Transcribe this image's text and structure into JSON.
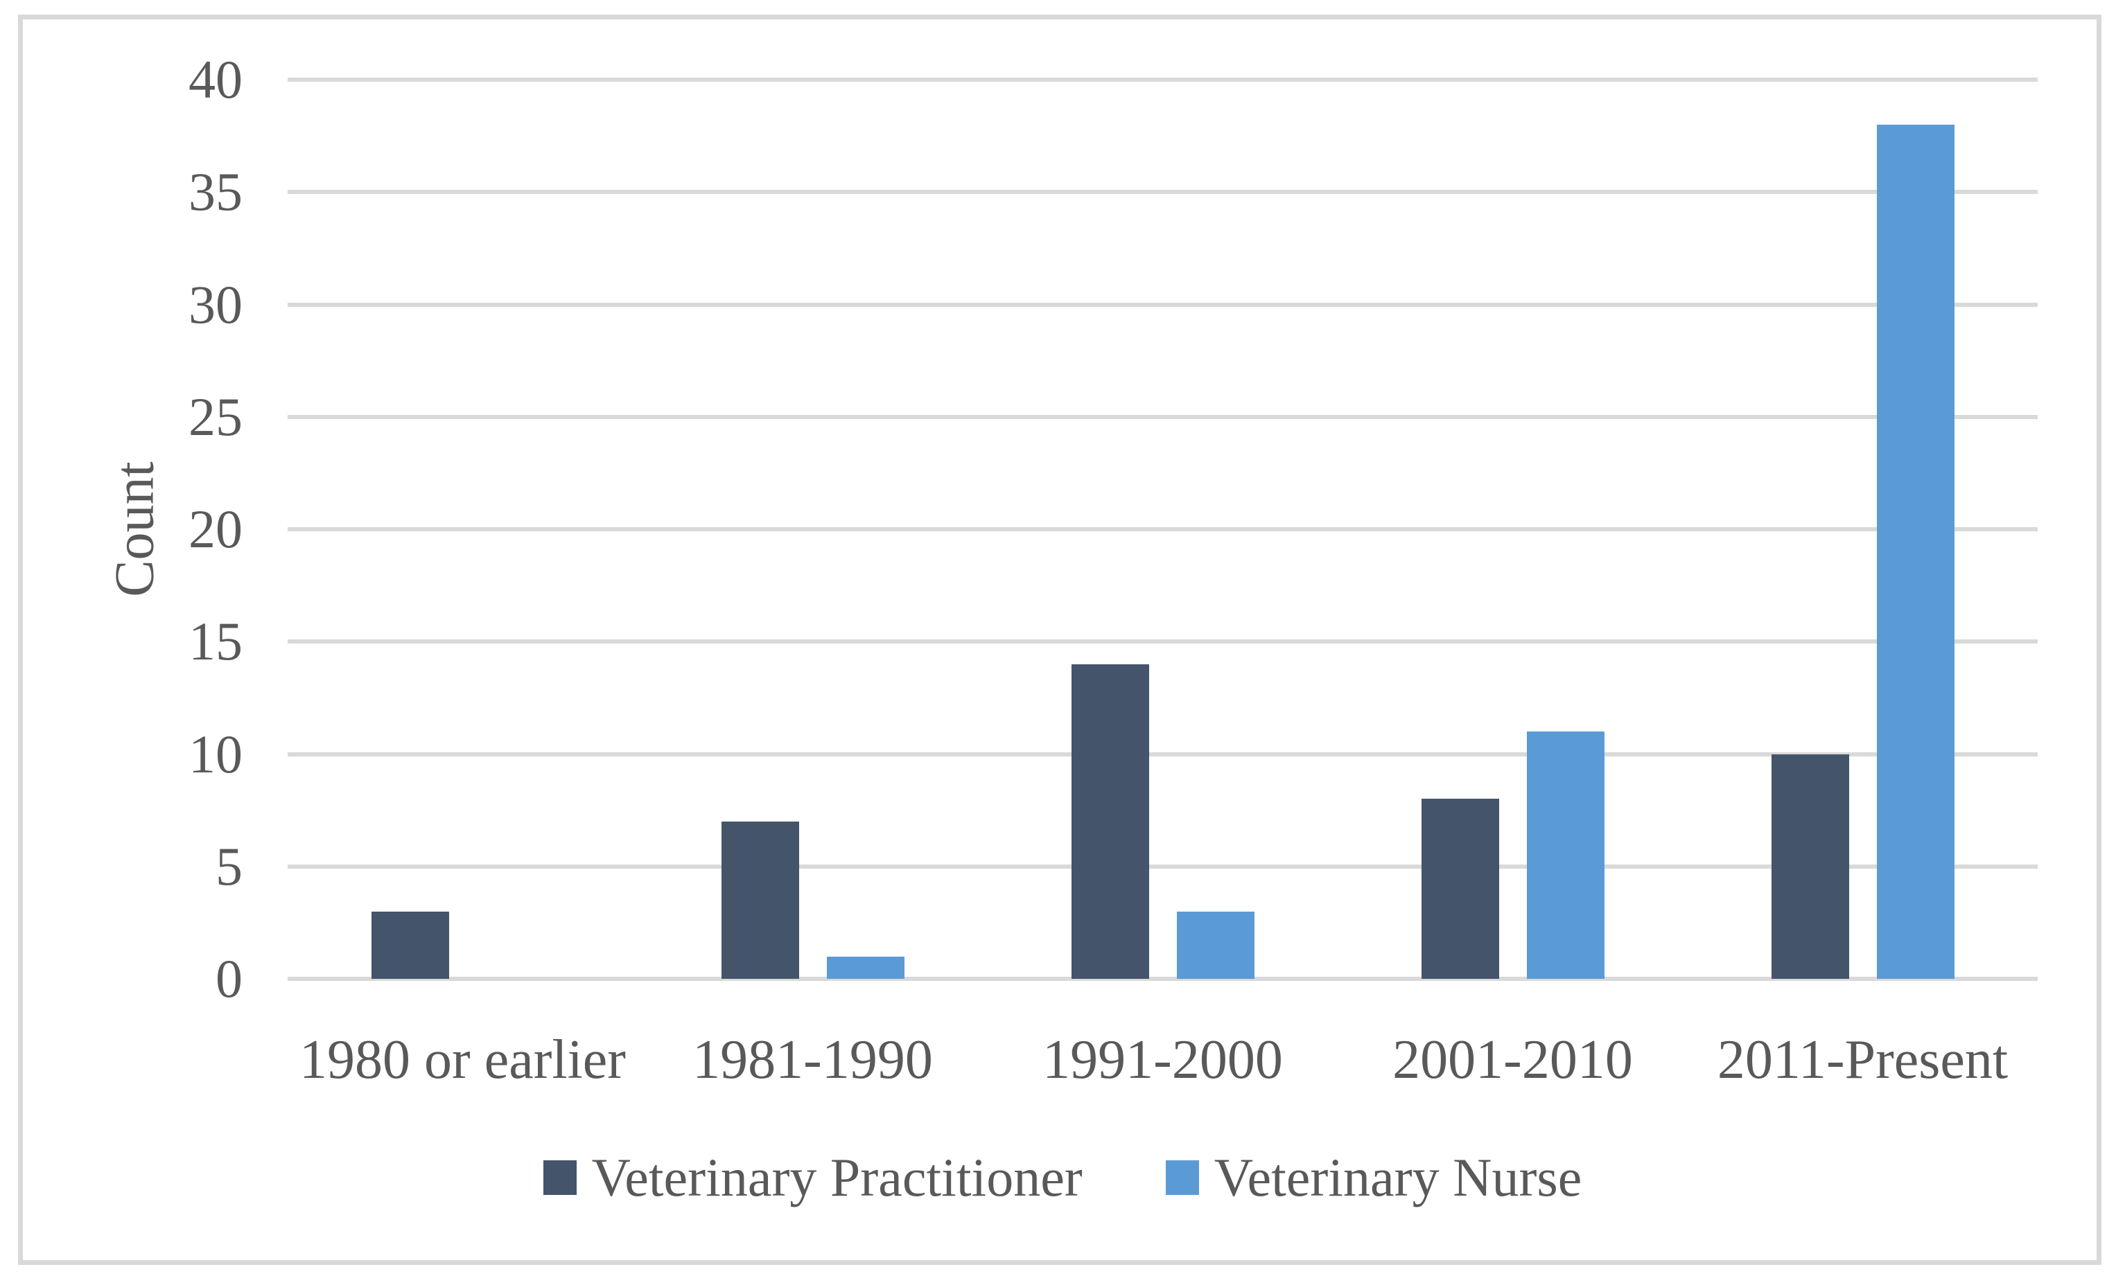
{
  "figure": {
    "background": "#ffffff",
    "border_color": "#d9d9d9"
  },
  "chart_data": {
    "type": "bar",
    "title": "",
    "categories": [
      "1980 or earlier",
      "1981-1990",
      "1991-2000",
      "2001-2010",
      "2011-Present"
    ],
    "series": [
      {
        "name": "Veterinary Practitioner",
        "color": "#44546A",
        "values": [
          3,
          7,
          14,
          8,
          10
        ]
      },
      {
        "name": "Veterinary Nurse",
        "color": "#5B9BD5",
        "values": [
          0,
          1,
          3,
          11,
          38
        ]
      }
    ],
    "xlabel": "",
    "ylabel": "Count",
    "ylim": [
      0,
      40
    ],
    "yticks": [
      0,
      5,
      10,
      15,
      20,
      25,
      30,
      35,
      40
    ],
    "grid": true,
    "gridline_color": "#d9d9d9",
    "axis_text_color": "#595959",
    "legend_position": "bottom"
  }
}
